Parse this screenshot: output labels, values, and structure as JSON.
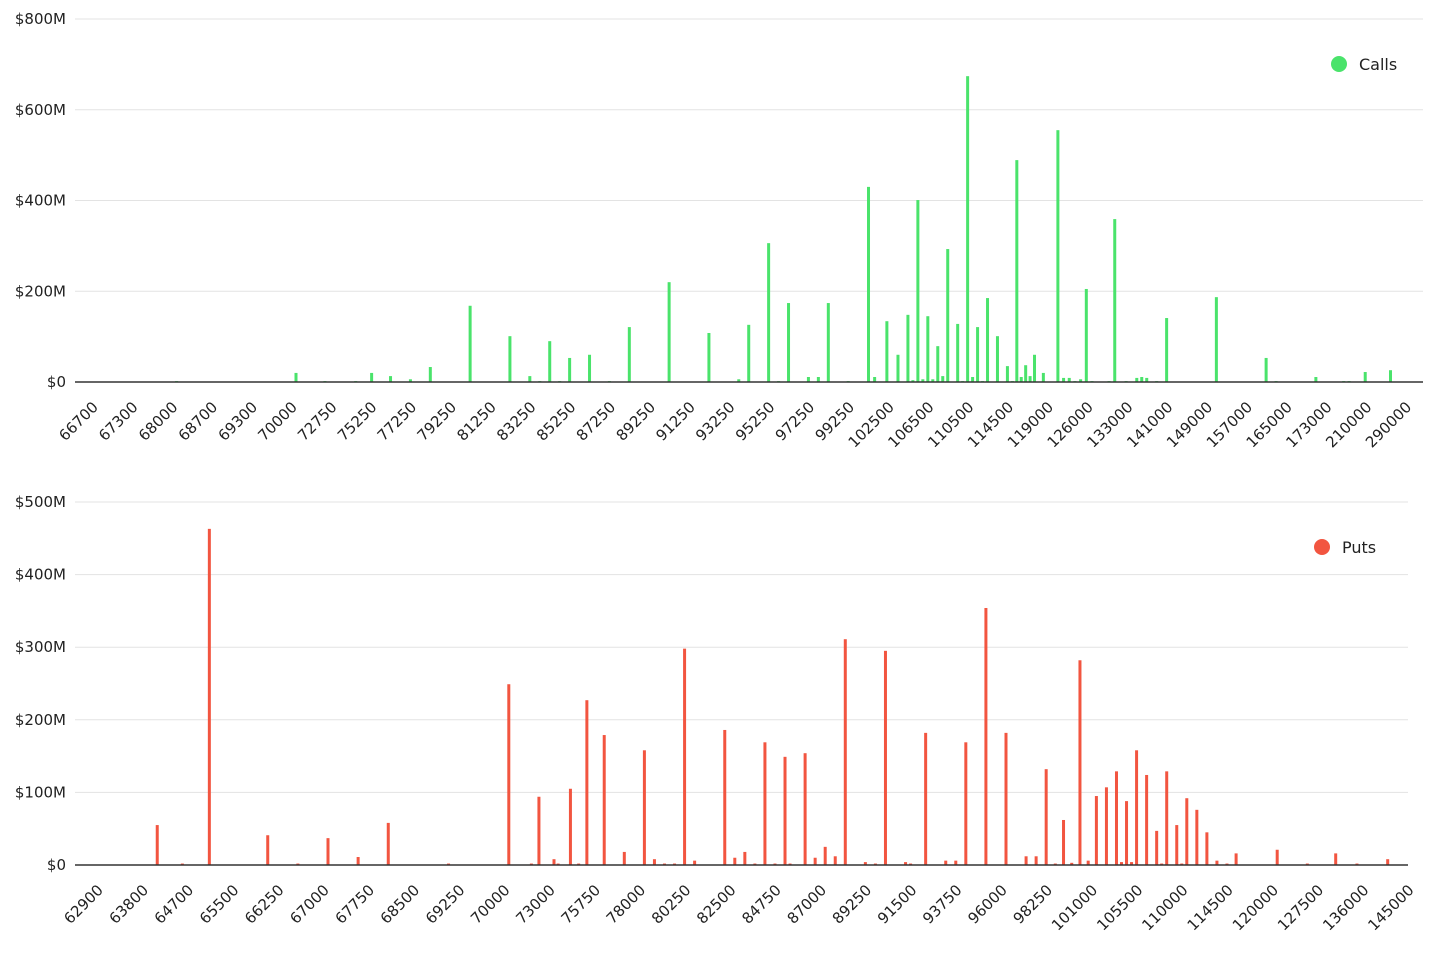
{
  "chart_data": [
    {
      "type": "bar",
      "title": "",
      "xlabel": "",
      "ylabel": "",
      "legend": {
        "label": "Calls",
        "position": "top-right"
      },
      "color": "#4ae36b",
      "grid": true,
      "ylim": [
        0,
        800
      ],
      "y_unit": "$M",
      "y_ticks": [
        "$0",
        "$200M",
        "$400M",
        "$600M",
        "$800M"
      ],
      "y_tick_values": [
        0,
        200,
        400,
        600,
        800
      ],
      "x_tick_labels": [
        "66700",
        "67300",
        "68000",
        "68700",
        "69300",
        "70000",
        "72750",
        "75250",
        "77250",
        "79250",
        "81250",
        "83250",
        "85250",
        "87250",
        "89250",
        "91250",
        "93250",
        "95250",
        "97250",
        "99250",
        "102500",
        "106500",
        "110500",
        "114500",
        "119000",
        "126000",
        "133000",
        "141000",
        "149000",
        "157000",
        "165000",
        "173000",
        "210000",
        "290000"
      ],
      "series": [
        {
          "name": "Calls",
          "points": [
            [
              68000,
              2
            ],
            [
              70000,
              20
            ],
            [
              72000,
              2
            ],
            [
              74000,
              2
            ],
            [
              75000,
              20
            ],
            [
              76000,
              13
            ],
            [
              77000,
              6
            ],
            [
              78000,
              33
            ],
            [
              80000,
              168
            ],
            [
              82000,
              101
            ],
            [
              83000,
              13
            ],
            [
              83500,
              2
            ],
            [
              84000,
              90
            ],
            [
              84500,
              2
            ],
            [
              85000,
              53
            ],
            [
              86000,
              60
            ],
            [
              87000,
              2
            ],
            [
              88000,
              121
            ],
            [
              90000,
              220
            ],
            [
              92000,
              108
            ],
            [
              93500,
              6
            ],
            [
              94000,
              126
            ],
            [
              95000,
              306
            ],
            [
              95500,
              2
            ],
            [
              96000,
              174
            ],
            [
              97000,
              11
            ],
            [
              97500,
              11
            ],
            [
              98000,
              174
            ],
            [
              99000,
              2
            ],
            [
              100500,
              430
            ],
            [
              101000,
              11
            ],
            [
              102000,
              134
            ],
            [
              103000,
              60
            ],
            [
              104000,
              148
            ],
            [
              104500,
              4
            ],
            [
              105000,
              401
            ],
            [
              105500,
              6
            ],
            [
              106000,
              145
            ],
            [
              106500,
              6
            ],
            [
              107000,
              79
            ],
            [
              107500,
              13
            ],
            [
              108000,
              293
            ],
            [
              109000,
              128
            ],
            [
              109500,
              2
            ],
            [
              110000,
              674
            ],
            [
              110500,
              11
            ],
            [
              111000,
              121
            ],
            [
              111500,
              2
            ],
            [
              112000,
              185
            ],
            [
              113000,
              101
            ],
            [
              114000,
              35
            ],
            [
              114500,
              2
            ],
            [
              115000,
              489
            ],
            [
              115500,
              11
            ],
            [
              116000,
              37
            ],
            [
              116500,
              13
            ],
            [
              117000,
              60
            ],
            [
              118000,
              20
            ],
            [
              120000,
              555
            ],
            [
              121000,
              9
            ],
            [
              122000,
              9
            ],
            [
              123000,
              2
            ],
            [
              124000,
              6
            ],
            [
              125000,
              205
            ],
            [
              126000,
              2
            ],
            [
              129000,
              2
            ],
            [
              130000,
              359
            ],
            [
              132000,
              2
            ],
            [
              134000,
              9
            ],
            [
              135000,
              11
            ],
            [
              136000,
              9
            ],
            [
              138000,
              2
            ],
            [
              140000,
              141
            ],
            [
              150000,
              187
            ],
            [
              160000,
              53
            ],
            [
              162000,
              2
            ],
            [
              170000,
              11
            ],
            [
              185000,
              2
            ],
            [
              190000,
              2
            ],
            [
              205000,
              22
            ],
            [
              250000,
              26
            ]
          ]
        }
      ]
    },
    {
      "type": "bar",
      "title": "",
      "xlabel": "",
      "ylabel": "",
      "legend": {
        "label": "Puts",
        "position": "top-right"
      },
      "color": "#f25540",
      "grid": true,
      "ylim": [
        0,
        500
      ],
      "y_unit": "$M",
      "y_ticks": [
        "$0",
        "$100M",
        "$200M",
        "$300M",
        "$400M",
        "$500M"
      ],
      "y_tick_values": [
        0,
        100,
        200,
        300,
        400,
        500
      ],
      "x_tick_labels": [
        "62900",
        "63800",
        "64700",
        "65500",
        "66250",
        "67000",
        "67750",
        "68500",
        "69250",
        "70000",
        "73000",
        "75750",
        "78000",
        "80250",
        "82500",
        "84750",
        "87000",
        "89250",
        "91500",
        "93750",
        "96000",
        "98250",
        "101000",
        "105500",
        "110000",
        "114500",
        "120000",
        "127500",
        "136000",
        "145000"
      ],
      "series": [
        {
          "name": "Puts",
          "points": [
            [
              64000,
              55
            ],
            [
              64500,
              2
            ],
            [
              65000,
              463
            ],
            [
              66000,
              41
            ],
            [
              66500,
              2
            ],
            [
              67000,
              37
            ],
            [
              67500,
              11
            ],
            [
              68000,
              58
            ],
            [
              69000,
              2
            ],
            [
              70000,
              249
            ],
            [
              71500,
              2
            ],
            [
              72000,
              94
            ],
            [
              73000,
              8
            ],
            [
              73250,
              2
            ],
            [
              74000,
              105
            ],
            [
              74500,
              2
            ],
            [
              75000,
              227
            ],
            [
              76000,
              179
            ],
            [
              77000,
              18
            ],
            [
              78000,
              158
            ],
            [
              78500,
              8
            ],
            [
              79000,
              2
            ],
            [
              79500,
              2
            ],
            [
              80000,
              298
            ],
            [
              80500,
              6
            ],
            [
              82000,
              186
            ],
            [
              82500,
              10
            ],
            [
              83000,
              18
            ],
            [
              83500,
              2
            ],
            [
              84000,
              169
            ],
            [
              84500,
              2
            ],
            [
              85000,
              149
            ],
            [
              85250,
              2
            ],
            [
              86000,
              154
            ],
            [
              86500,
              10
            ],
            [
              87000,
              25
            ],
            [
              87500,
              12
            ],
            [
              88000,
              311
            ],
            [
              89000,
              4
            ],
            [
              89500,
              2
            ],
            [
              90000,
              295
            ],
            [
              91000,
              4
            ],
            [
              91250,
              2
            ],
            [
              92000,
              182
            ],
            [
              93000,
              6
            ],
            [
              93500,
              6
            ],
            [
              94000,
              169
            ],
            [
              95000,
              354
            ],
            [
              96000,
              182
            ],
            [
              97000,
              12
            ],
            [
              97500,
              12
            ],
            [
              98000,
              132
            ],
            [
              98500,
              2
            ],
            [
              99000,
              62
            ],
            [
              99500,
              3
            ],
            [
              100000,
              282
            ],
            [
              100500,
              6
            ],
            [
              101000,
              95
            ],
            [
              102000,
              107
            ],
            [
              103000,
              129
            ],
            [
              103500,
              4
            ],
            [
              104000,
              88
            ],
            [
              104500,
              4
            ],
            [
              105000,
              158
            ],
            [
              106000,
              124
            ],
            [
              107000,
              47
            ],
            [
              107500,
              2
            ],
            [
              108000,
              129
            ],
            [
              109000,
              55
            ],
            [
              109500,
              2
            ],
            [
              110000,
              92
            ],
            [
              111000,
              76
            ],
            [
              112000,
              45
            ],
            [
              113000,
              6
            ],
            [
              114000,
              2
            ],
            [
              115000,
              16
            ],
            [
              120000,
              21
            ],
            [
              125000,
              2
            ],
            [
              130000,
              16
            ],
            [
              134000,
              2
            ],
            [
              140000,
              8
            ]
          ]
        }
      ]
    }
  ]
}
